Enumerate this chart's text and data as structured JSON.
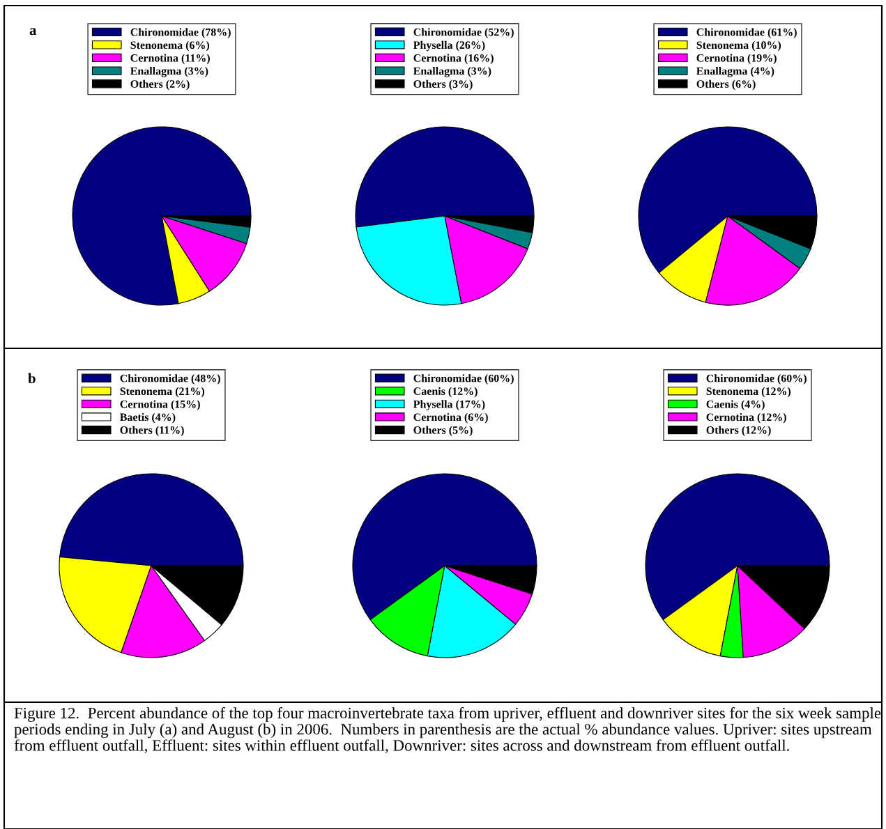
{
  "chart_data": [
    {
      "type": "pie",
      "annotations": [
        "a"
      ],
      "legend": "top",
      "categories": [
        "Chironomidae (78%)",
        "Stenonema (6%)",
        "Cernotina (11%)",
        "Enallagma (3%)",
        "Others (2%)"
      ],
      "values": [
        78,
        6,
        11,
        3,
        2
      ],
      "colors": [
        "#000080",
        "#ffff00",
        "#ff00ff",
        "#008080",
        "#000000"
      ]
    },
    {
      "type": "pie",
      "legend": "top",
      "categories": [
        "Chironomidae (52%)",
        "Physella (26%)",
        "Cernotina (16%)",
        "Enallagma (3%)",
        "Others (3%)"
      ],
      "values": [
        52,
        26,
        16,
        3,
        3
      ],
      "colors": [
        "#000080",
        "#00ffff",
        "#ff00ff",
        "#008080",
        "#000000"
      ]
    },
    {
      "type": "pie",
      "legend": "top",
      "categories": [
        "Chironomidae (61%)",
        "Stenonema (10%)",
        "Cernotina (19%)",
        "Enallagma (4%)",
        "Others (6%)"
      ],
      "values": [
        61,
        10,
        19,
        4,
        6
      ],
      "colors": [
        "#000080",
        "#ffff00",
        "#ff00ff",
        "#008080",
        "#000000"
      ]
    },
    {
      "type": "pie",
      "annotations": [
        "b"
      ],
      "legend": "top",
      "categories": [
        "Chironomidae (48%)",
        "Stenonema (21%)",
        "Cernotina (15%)",
        "Baetis (4%)",
        "Others (11%)"
      ],
      "values": [
        48,
        21,
        15,
        4,
        11
      ],
      "colors": [
        "#000080",
        "#ffff00",
        "#ff00ff",
        "#ffffff",
        "#000000"
      ]
    },
    {
      "type": "pie",
      "legend": "top",
      "categories": [
        "Chironomidae (60%)",
        "Caenis (12%)",
        "Physella (17%)",
        "Cernotina (6%)",
        "Others (5%)"
      ],
      "values": [
        60,
        12,
        17,
        6,
        5
      ],
      "colors": [
        "#000080",
        "#00ff00",
        "#00ffff",
        "#ff00ff",
        "#000000"
      ]
    },
    {
      "type": "pie",
      "annotations": [
        "Figure 12.  Percent abundance of the top four macroinvertebrate taxa from upriver, effluent and downriver sites for the six week sample periods ending in July (a) and August (b) in 2006.  Numbers in parenthesis are the actual % abundance values. Upriver: sites upstream from effluent outfall, Effluent: sites within effluent outfall, Downriver: sites across and downstream from effluent outfall."
      ],
      "legend": "top",
      "categories": [
        "Chironomidae (60%)",
        "Stenonema (12%)",
        "Caenis (4%)",
        "Cernotina (12%)",
        "Others (12%)"
      ],
      "values": [
        60,
        12,
        4,
        12,
        12
      ],
      "colors": [
        "#000080",
        "#ffff00",
        "#00ff00",
        "#ff00ff",
        "#000000"
      ]
    }
  ]
}
